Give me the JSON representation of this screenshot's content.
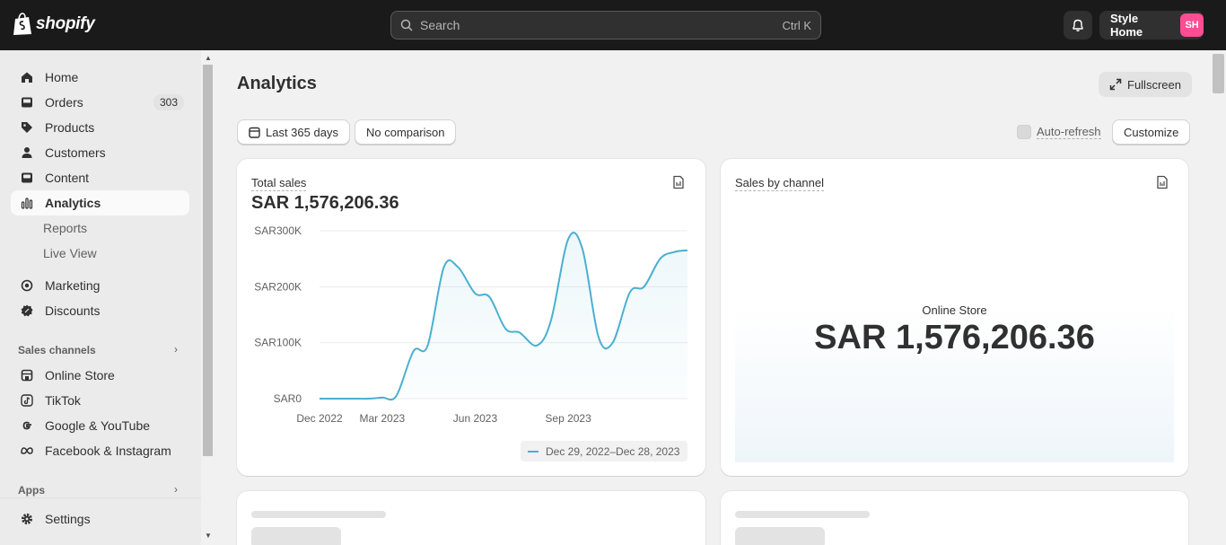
{
  "topbar": {
    "logo_text": "shopify",
    "search_placeholder": "Search",
    "search_shortcut": "Ctrl K",
    "store_name": "Style Home",
    "avatar_initials": "SH"
  },
  "sidebar": {
    "items": [
      {
        "label": "Home",
        "icon": "home-icon"
      },
      {
        "label": "Orders",
        "icon": "inbox-icon",
        "badge": "303"
      },
      {
        "label": "Products",
        "icon": "tag-icon"
      },
      {
        "label": "Customers",
        "icon": "person-icon"
      },
      {
        "label": "Content",
        "icon": "image-icon"
      },
      {
        "label": "Analytics",
        "icon": "bar-chart-icon",
        "active": true
      },
      {
        "label": "Reports"
      },
      {
        "label": "Live View"
      },
      {
        "label": "Marketing",
        "icon": "target-icon"
      },
      {
        "label": "Discounts",
        "icon": "discount-icon"
      }
    ],
    "sales_channels_label": "Sales channels",
    "channels": [
      {
        "label": "Online Store",
        "icon": "store-icon"
      },
      {
        "label": "TikTok",
        "icon": "tiktok-icon"
      },
      {
        "label": "Google & YouTube",
        "icon": "google-icon"
      },
      {
        "label": "Facebook & Instagram",
        "icon": "meta-icon"
      }
    ],
    "apps_label": "Apps",
    "settings_label": "Settings"
  },
  "main": {
    "title": "Analytics",
    "fullscreen_label": "Fullscreen",
    "date_range_label": "Last 365 days",
    "comparison_label": "No comparison",
    "auto_refresh_label": "Auto-refresh",
    "customize_label": "Customize"
  },
  "total_sales_card": {
    "label": "Total sales",
    "value": "SAR 1,576,206.36",
    "legend": "Dec 29, 2022–Dec 28, 2023"
  },
  "sales_by_channel_card": {
    "label": "Sales by channel",
    "channel_name": "Online Store",
    "channel_value": "SAR 1,576,206.36"
  },
  "chart_data": {
    "type": "line",
    "title": "Total sales",
    "y_tick_labels": [
      "SAR300K",
      "SAR200K",
      "SAR100K",
      "SAR0"
    ],
    "x_tick_labels": [
      "Dec 2022",
      "Mar 2023",
      "Jun 2023",
      "Sep 2023"
    ],
    "ylim": [
      0,
      300000
    ],
    "grid": true,
    "series": [
      {
        "name": "Dec 29, 2022–Dec 28, 2023",
        "color": "#4ab0d0",
        "x": [
          "2022-12-29",
          "2023-01-15",
          "2023-02-01",
          "2023-02-15",
          "2023-03-01",
          "2023-03-15",
          "2023-04-01",
          "2023-04-15",
          "2023-05-01",
          "2023-05-15",
          "2023-06-01",
          "2023-06-15",
          "2023-07-01",
          "2023-07-15",
          "2023-08-01",
          "2023-08-15",
          "2023-09-01",
          "2023-09-15",
          "2023-10-01",
          "2023-10-15",
          "2023-11-01",
          "2023-11-15",
          "2023-12-01",
          "2023-12-15",
          "2023-12-28"
        ],
        "values": [
          0,
          0,
          0,
          0,
          2000,
          5000,
          85000,
          95000,
          235000,
          235000,
          188000,
          182000,
          125000,
          118000,
          95000,
          140000,
          285000,
          268000,
          110000,
          100000,
          190000,
          200000,
          250000,
          262000,
          265000
        ]
      }
    ]
  }
}
